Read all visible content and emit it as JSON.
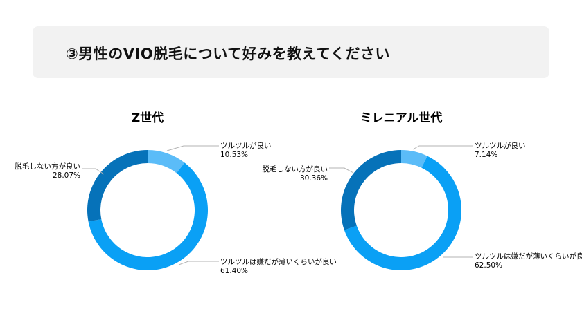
{
  "header": {
    "title": "③男性のVIO脱毛について好みを教えてください"
  },
  "colors": {
    "smooth": "#5bbcf8",
    "thin": "#0aa0f5",
    "none": "#0672b9",
    "leader": "#b3b3b3"
  },
  "chart_data": [
    {
      "type": "pie",
      "title": "Z世代",
      "categories": [
        "ツルツルが良い",
        "ツルツルは嫌だが薄いくらいが良い",
        "脱毛しない方が良い"
      ],
      "values": [
        10.53,
        61.4,
        28.07
      ],
      "value_labels": [
        "10.53%",
        "61.40%",
        "28.07%"
      ]
    },
    {
      "type": "pie",
      "title": "ミレニアル世代",
      "categories": [
        "ツルツルが良い",
        "ツルツルは嫌だが薄いくらいが良い",
        "脱毛しない方が良い"
      ],
      "values": [
        7.14,
        62.5,
        30.36
      ],
      "value_labels": [
        "7.14%",
        "62.50%",
        "30.36%"
      ]
    }
  ]
}
